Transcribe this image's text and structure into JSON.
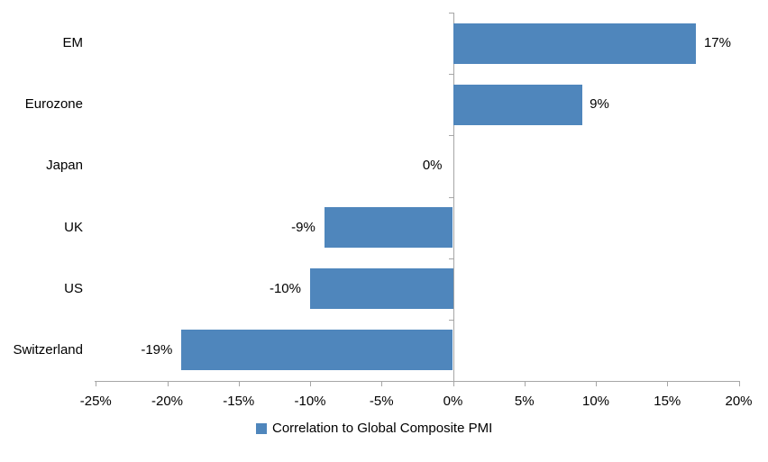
{
  "chart_data": {
    "type": "bar",
    "orientation": "horizontal",
    "title": "",
    "xlabel": "",
    "ylabel": "",
    "categories": [
      "EM",
      "Eurozone",
      "Japan",
      "UK",
      "US",
      "Switzerland"
    ],
    "series": [
      {
        "name": "Correlation to Global Composite PMI",
        "values": [
          17,
          9,
          0,
          -9,
          -10,
          -19
        ],
        "value_labels": [
          "17%",
          "9%",
          "0%",
          "-9%",
          "-10%",
          "-19%"
        ]
      }
    ],
    "xlim": [
      -25,
      20
    ],
    "x_tick_values": [
      -25,
      -20,
      -15,
      -10,
      -5,
      0,
      5,
      10,
      15,
      20
    ],
    "x_tick_labels": [
      "-25%",
      "-20%",
      "-15%",
      "-10%",
      "-5%",
      "0%",
      "5%",
      "10%",
      "15%",
      "20%"
    ],
    "grid": "off",
    "legend_position": "bottom",
    "colors": {
      "bar": "#4F86BC",
      "axis": "#A6A6A6",
      "text": "#000000",
      "background": "#FFFFFF"
    }
  },
  "legend": {
    "label": "Correlation to Global Composite PMI"
  }
}
